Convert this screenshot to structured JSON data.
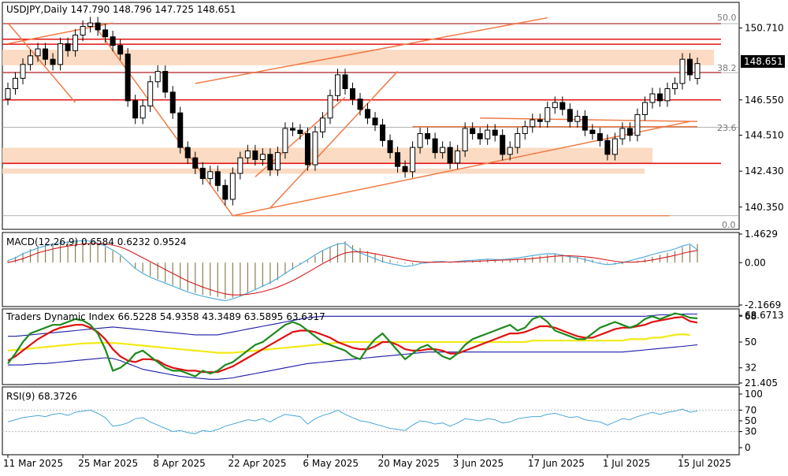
{
  "chart_data": {
    "type": "candlestick",
    "symbol": "USDJPY",
    "timeframe": "Daily",
    "ohlc_header": [
      "147.790",
      "148.796",
      "147.725",
      "148.651"
    ],
    "last_price": "148.651",
    "y_ticks": [
      "150.710",
      "148.651",
      "146.550",
      "144.510",
      "142.430",
      "140.350"
    ],
    "ylim": [
      139.2,
      152.1
    ],
    "x_labels": [
      {
        "label": "11 Mar 2025",
        "i": 0
      },
      {
        "label": "25 Mar 2025",
        "i": 10
      },
      {
        "label": "8 Apr 2025",
        "i": 20
      },
      {
        "label": "22 Apr 2025",
        "i": 30
      },
      {
        "label": "6 May 2025",
        "i": 40
      },
      {
        "label": "20 May 2025",
        "i": 50
      },
      {
        "label": "3 Jun 2025",
        "i": 60
      },
      {
        "label": "17 Jun 2025",
        "i": 70
      },
      {
        "label": "1 Jul 2025",
        "i": 80
      },
      {
        "label": "15 Jul 2025",
        "i": 90
      }
    ],
    "close": [
      147.2,
      147.8,
      148.6,
      149.1,
      149.5,
      148.9,
      148.6,
      149.8,
      149.4,
      150.3,
      150.8,
      151.0,
      150.6,
      150.2,
      149.7,
      149.2,
      146.5,
      145.5,
      146.2,
      147.6,
      148.2,
      147.0,
      145.8,
      143.8,
      143.2,
      142.6,
      142.0,
      142.4,
      141.6,
      140.8,
      142.3,
      143.2,
      143.6,
      143.1,
      143.4,
      142.5,
      143.5,
      144.9,
      144.8,
      144.6,
      142.8,
      144.7,
      145.5,
      146.8,
      148.0,
      147.2,
      146.6,
      146.0,
      145.5,
      145.1,
      144.2,
      143.5,
      142.7,
      142.4,
      143.8,
      144.6,
      144.3,
      143.5,
      143.8,
      142.9,
      143.6,
      144.9,
      144.6,
      144.3,
      144.8,
      144.5,
      143.4,
      143.8,
      144.6,
      145.0,
      145.4,
      145.3,
      146.1,
      146.4,
      146.0,
      145.3,
      145.6,
      144.8,
      144.6,
      144.2,
      143.4,
      144.3,
      144.9,
      144.5,
      145.7,
      146.4,
      146.9,
      146.5,
      147.2,
      147.5,
      148.9,
      148.0,
      148.651
    ],
    "open": [
      146.6,
      147.2,
      147.8,
      148.6,
      149.1,
      149.5,
      148.9,
      148.6,
      149.8,
      149.4,
      150.3,
      150.8,
      151.0,
      150.6,
      150.2,
      149.7,
      149.2,
      146.5,
      145.5,
      146.2,
      147.6,
      148.2,
      147.0,
      145.8,
      143.8,
      143.2,
      142.6,
      142.0,
      142.4,
      141.6,
      140.8,
      142.3,
      143.2,
      143.6,
      143.1,
      143.4,
      142.5,
      143.5,
      144.9,
      144.8,
      144.6,
      142.8,
      144.7,
      145.5,
      146.8,
      148.0,
      147.2,
      146.6,
      146.0,
      145.5,
      145.1,
      144.2,
      143.5,
      142.7,
      142.4,
      143.8,
      144.6,
      144.3,
      143.5,
      143.8,
      142.9,
      143.6,
      144.9,
      144.6,
      144.3,
      144.8,
      144.5,
      143.4,
      143.8,
      144.6,
      145.0,
      145.4,
      145.3,
      146.1,
      146.4,
      146.0,
      145.3,
      145.6,
      144.8,
      144.6,
      144.2,
      143.4,
      144.3,
      144.9,
      144.5,
      145.7,
      146.4,
      146.9,
      146.5,
      147.2,
      147.5,
      148.9,
      147.79
    ],
    "fib_labels": [
      "50.0",
      "38.2",
      "23.6",
      "0.0"
    ],
    "fib_levels": [
      150.96,
      148.13,
      144.96,
      139.85
    ],
    "horizontal_levels": [
      150.96,
      150.06,
      149.77,
      148.13,
      146.55,
      142.88
    ],
    "zones": [
      {
        "from": 148.55,
        "to": 149.45
      },
      {
        "from": 142.88,
        "to": 143.78
      },
      {
        "from": 142.28,
        "to": 142.58
      }
    ],
    "macd": {
      "title": "MACD(12,26,9) 0.6584 0.6232 0.9524",
      "ticks": [
        "1.4629",
        "0.00",
        "-2.1669"
      ],
      "ylim": [
        -2.1669,
        1.4629
      ],
      "hist": [
        0.1,
        0.3,
        0.5,
        0.7,
        0.85,
        0.95,
        1.0,
        1.05,
        1.1,
        1.15,
        1.1,
        1.05,
        0.95,
        0.8,
        0.6,
        0.35,
        0.0,
        -0.3,
        -0.5,
        -0.7,
        -0.85,
        -1.0,
        -1.15,
        -1.3,
        -1.45,
        -1.55,
        -1.65,
        -1.7,
        -1.75,
        -1.85,
        -1.8,
        -1.7,
        -1.55,
        -1.4,
        -1.25,
        -1.1,
        -0.9,
        -0.6,
        -0.35,
        -0.1,
        0.1,
        0.35,
        0.6,
        0.8,
        1.0,
        1.1,
        0.9,
        0.75,
        0.6,
        0.45,
        0.3,
        0.15,
        0.05,
        -0.05,
        -0.1,
        -0.05,
        0.0,
        0.02,
        0.05,
        0.03,
        0.04,
        0.08,
        0.1,
        0.12,
        0.15,
        0.16,
        0.14,
        0.17,
        0.2,
        0.25,
        0.3,
        0.35,
        0.4,
        0.45,
        0.42,
        0.35,
        0.3,
        0.25,
        0.15,
        0.05,
        -0.05,
        -0.1,
        -0.08,
        0.0,
        0.1,
        0.2,
        0.3,
        0.4,
        0.5,
        0.6,
        0.8,
        0.9,
        0.9524
      ],
      "signal": [
        0.0,
        0.1,
        0.2,
        0.35,
        0.5,
        0.6,
        0.7,
        0.78,
        0.85,
        0.9,
        0.95,
        0.98,
        0.98,
        0.95,
        0.9,
        0.8,
        0.65,
        0.45,
        0.25,
        0.05,
        -0.15,
        -0.35,
        -0.55,
        -0.75,
        -0.95,
        -1.1,
        -1.25,
        -1.38,
        -1.5,
        -1.6,
        -1.65,
        -1.65,
        -1.62,
        -1.56,
        -1.48,
        -1.38,
        -1.25,
        -1.1,
        -0.92,
        -0.72,
        -0.5,
        -0.28,
        -0.05,
        0.15,
        0.35,
        0.5,
        0.55,
        0.55,
        0.52,
        0.46,
        0.38,
        0.3,
        0.22,
        0.14,
        0.08,
        0.04,
        0.02,
        0.02,
        0.03,
        0.03,
        0.04,
        0.05,
        0.06,
        0.08,
        0.1,
        0.12,
        0.13,
        0.14,
        0.16,
        0.18,
        0.21,
        0.25,
        0.29,
        0.33,
        0.35,
        0.35,
        0.33,
        0.3,
        0.26,
        0.2,
        0.13,
        0.07,
        0.03,
        0.02,
        0.04,
        0.08,
        0.14,
        0.21,
        0.29,
        0.37,
        0.47,
        0.56,
        0.6232
      ],
      "macd_line": [
        0.1,
        0.25,
        0.45,
        0.6,
        0.75,
        0.85,
        0.95,
        1.0,
        1.05,
        1.1,
        1.12,
        1.1,
        1.0,
        0.85,
        0.65,
        0.4,
        0.05,
        -0.3,
        -0.55,
        -0.75,
        -0.9,
        -1.05,
        -1.2,
        -1.35,
        -1.5,
        -1.62,
        -1.72,
        -1.8,
        -1.88,
        -1.95,
        -1.85,
        -1.72,
        -1.55,
        -1.38,
        -1.2,
        -1.02,
        -0.8,
        -0.55,
        -0.3,
        -0.08,
        0.15,
        0.4,
        0.62,
        0.8,
        0.95,
        1.0,
        0.7,
        0.5,
        0.35,
        0.2,
        0.05,
        -0.05,
        -0.12,
        -0.2,
        -0.15,
        -0.05,
        0.0,
        0.05,
        0.06,
        0.02,
        0.06,
        0.1,
        0.12,
        0.15,
        0.18,
        0.16,
        0.15,
        0.2,
        0.24,
        0.3,
        0.36,
        0.42,
        0.46,
        0.45,
        0.38,
        0.3,
        0.25,
        0.16,
        0.05,
        -0.05,
        -0.1,
        -0.06,
        0.0,
        0.1,
        0.2,
        0.3,
        0.42,
        0.52,
        0.6,
        0.7,
        0.85,
        0.95,
        0.6584
      ]
    },
    "tdi": {
      "title": "Traders Dynamic Index 66.5228 54.9358 43.3489 63.5895 63.6317",
      "ticks": [
        "68.6713",
        "68",
        "50",
        "32",
        "21.405"
      ],
      "ylim": [
        21.405,
        72.0
      ],
      "green": [
        35,
        42,
        50,
        56,
        58,
        60,
        62,
        62,
        64,
        66,
        65,
        62,
        56,
        45,
        30,
        32,
        36,
        42,
        44,
        40,
        36,
        32,
        30,
        30,
        28,
        26,
        30,
        28,
        30,
        34,
        36,
        40,
        44,
        48,
        50,
        54,
        58,
        62,
        64,
        62,
        58,
        54,
        50,
        48,
        46,
        44,
        40,
        38,
        46,
        52,
        56,
        50,
        44,
        38,
        42,
        46,
        48,
        44,
        40,
        38,
        42,
        48,
        52,
        54,
        56,
        58,
        60,
        62,
        58,
        60,
        66,
        68,
        64,
        58,
        56,
        54,
        52,
        52,
        56,
        60,
        62,
        64,
        62,
        60,
        62,
        66,
        68,
        66,
        68,
        70,
        69,
        67,
        66.52
      ],
      "red": [
        37,
        40,
        44,
        48,
        52,
        55,
        58,
        60,
        61,
        62,
        62,
        60,
        57,
        52,
        45,
        40,
        37,
        36,
        38,
        38,
        37,
        34,
        32,
        31,
        30,
        30,
        29,
        29,
        29,
        31,
        33,
        36,
        39,
        42,
        45,
        48,
        51,
        54,
        57,
        58,
        58,
        57,
        55,
        53,
        50,
        48,
        46,
        45,
        45,
        47,
        50,
        50,
        48,
        45,
        44,
        44,
        45,
        45,
        44,
        42,
        42,
        44,
        46,
        48,
        50,
        52,
        54,
        56,
        56,
        57,
        59,
        61,
        61,
        60,
        58,
        56,
        54,
        53,
        53,
        55,
        57,
        59,
        60,
        60,
        61,
        62,
        64,
        65,
        66,
        67,
        67.5,
        64.5,
        63.59
      ],
      "yellow": [
        44,
        44.5,
        45,
        45.5,
        46,
        46.5,
        47,
        47.5,
        48,
        48.5,
        49,
        49.2,
        49.4,
        49.5,
        49.4,
        49,
        48.5,
        48,
        47.5,
        47,
        46.5,
        46,
        45.5,
        45,
        44.5,
        44,
        43.5,
        43,
        42.5,
        42.5,
        42.5,
        43,
        43.5,
        44,
        44.5,
        45,
        45.5,
        46,
        46.5,
        47,
        47.5,
        48,
        48.5,
        49,
        49.5,
        50,
        50,
        50,
        50,
        50,
        50,
        50,
        50,
        50,
        50,
        50,
        50,
        50,
        50,
        50,
        50,
        50,
        50,
        50,
        50,
        50,
        50,
        50,
        50,
        50,
        51,
        51,
        51,
        51,
        51,
        51,
        51,
        51,
        51,
        51,
        51,
        51,
        51,
        52,
        52,
        52,
        53,
        53,
        54,
        55,
        55.5,
        54.9
      ],
      "upper": [
        54,
        54,
        54.5,
        55,
        55.5,
        56,
        56.5,
        57,
        57.5,
        58,
        58.5,
        59,
        59.5,
        60,
        60.5,
        60,
        59.5,
        59,
        58.5,
        58,
        57.5,
        57,
        56.5,
        56,
        55.5,
        55,
        55,
        55,
        55,
        56,
        57,
        58,
        59,
        60,
        61,
        62,
        63,
        64,
        65,
        66,
        67,
        67.5,
        68,
        68,
        68,
        68,
        68,
        68,
        68,
        68,
        68,
        68,
        68,
        68,
        68,
        68,
        68,
        68,
        68,
        68,
        68,
        68,
        68,
        68,
        68,
        68,
        68,
        68,
        68,
        68,
        68,
        68,
        68,
        68,
        68,
        68,
        68,
        68,
        68,
        68,
        68,
        68,
        68,
        68,
        68,
        68,
        68.5,
        69,
        69,
        69.5,
        69.5,
        69.5,
        69.5
      ],
      "lower": [
        34,
        34,
        34,
        34.5,
        35,
        35,
        35.5,
        36,
        36.5,
        37,
        37.5,
        38,
        38.5,
        39,
        38.5,
        37,
        35,
        33,
        31,
        30,
        29,
        28,
        27,
        26,
        25.5,
        25,
        24.5,
        24,
        24,
        24.5,
        25,
        26,
        27,
        28,
        29,
        30,
        31,
        32,
        33,
        34,
        35,
        35.5,
        36,
        36.5,
        37,
        37.5,
        38,
        38.5,
        39,
        39.5,
        40,
        40.5,
        41,
        41.5,
        42,
        42.5,
        43,
        43,
        43,
        43,
        43,
        43,
        43,
        43,
        43,
        43,
        43,
        43,
        43,
        43,
        43,
        43,
        43,
        43,
        43,
        43,
        43,
        43,
        43,
        43,
        43,
        43,
        43,
        43.5,
        44,
        44.5,
        45,
        45.5,
        46,
        46.5,
        47,
        47.5,
        48
      ]
    },
    "rsi": {
      "title": "RSI(9) 68.3726",
      "ticks": [
        "100",
        "70",
        "50",
        "30",
        "0"
      ],
      "ylim": [
        0,
        100
      ],
      "values": [
        48,
        52,
        56,
        58,
        60,
        58,
        62,
        64,
        60,
        66,
        68,
        70,
        64,
        56,
        40,
        42,
        46,
        54,
        56,
        48,
        42,
        36,
        30,
        32,
        28,
        26,
        32,
        30,
        34,
        40,
        44,
        48,
        52,
        50,
        54,
        48,
        56,
        62,
        60,
        58,
        44,
        54,
        60,
        64,
        70,
        62,
        56,
        50,
        48,
        44,
        40,
        36,
        34,
        32,
        42,
        50,
        48,
        44,
        46,
        40,
        46,
        54,
        52,
        50,
        54,
        52,
        46,
        48,
        54,
        56,
        58,
        58,
        62,
        64,
        60,
        56,
        58,
        52,
        50,
        48,
        42,
        48,
        54,
        52,
        58,
        62,
        66,
        62,
        66,
        68,
        72,
        66,
        68.37
      ]
    }
  }
}
